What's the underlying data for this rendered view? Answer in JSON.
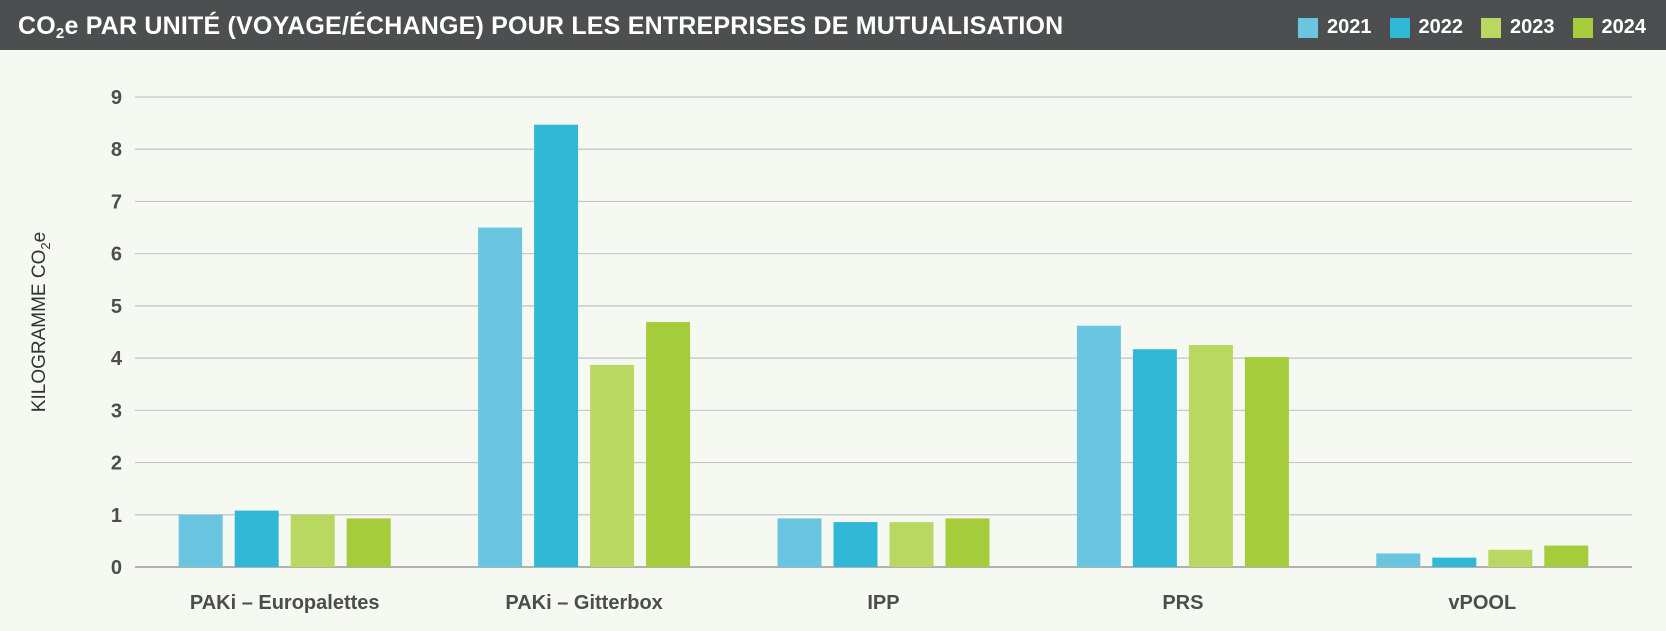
{
  "header": {
    "title_pre": "CO",
    "title_sub": "2",
    "title_post": "e PAR UNITÉ (VOYAGE/ÉCHANGE) POUR LES ENTREPRISES DE MUTUALISATION"
  },
  "chart_data": {
    "type": "bar",
    "title": "CO2e PAR UNITÉ (VOYAGE/ÉCHANGE) POUR LES ENTREPRISES DE MUTUALISATION",
    "ylabel_pre": "KILOGRAMME CO",
    "ylabel_sub": "2",
    "ylabel_post": "e",
    "ylim": [
      0,
      9
    ],
    "yticks": [
      "0",
      "1",
      "2",
      "3",
      "4",
      "5",
      "6",
      "7",
      "8",
      "9"
    ],
    "grid": true,
    "legend_position": "top-right",
    "categories": [
      "PAKi – Europalettes",
      "PAKi – Gitterbox",
      "IPP",
      "PRS",
      "vPOOL"
    ],
    "series": [
      {
        "name": "2021",
        "color": "#6ac6e0",
        "values": [
          1.0,
          6.5,
          0.93,
          4.62,
          0.26
        ]
      },
      {
        "name": "2022",
        "color": "#31b8d6",
        "values": [
          1.08,
          8.47,
          0.86,
          4.17,
          0.18
        ]
      },
      {
        "name": "2023",
        "color": "#b9d862",
        "values": [
          1.0,
          3.87,
          0.86,
          4.25,
          0.33
        ]
      },
      {
        "name": "2024",
        "color": "#a5cc3a",
        "values": [
          0.93,
          4.69,
          0.93,
          4.02,
          0.41
        ]
      }
    ]
  }
}
